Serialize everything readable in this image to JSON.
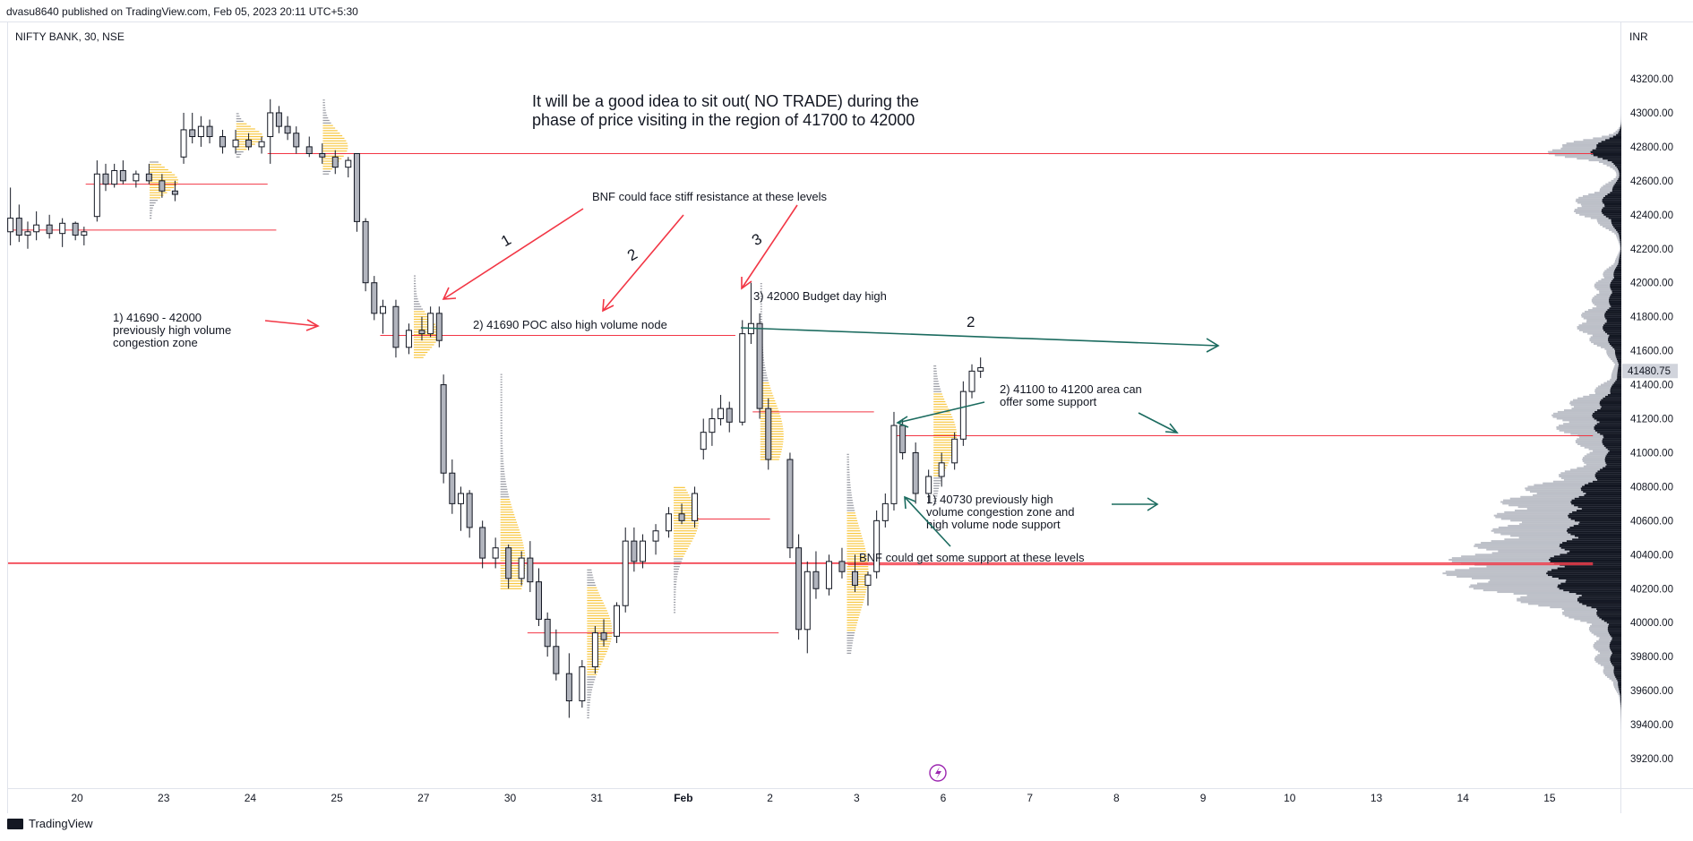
{
  "header": {
    "attribution": "dvasu8640 published on TradingView.com, Feb 05, 2023 20:11 UTC+5:30"
  },
  "symbol": {
    "label": "NIFTY BANK, 30, NSE"
  },
  "currency": "INR",
  "footer": {
    "brand": "TradingView"
  },
  "chart_data": {
    "type": "candlestick",
    "title": "NIFTY BANK, 30, NSE",
    "ylim": [
      39100,
      43400
    ],
    "y_ticks": [
      39200,
      39400,
      39600,
      39800,
      40000,
      40200,
      40400,
      40600,
      40800,
      41000,
      41200,
      41400,
      41600,
      41800,
      42000,
      42200,
      42400,
      42600,
      42800,
      43000,
      43200
    ],
    "x_labels": [
      "20",
      "23",
      "24",
      "25",
      "27",
      "30",
      "31",
      "Feb",
      "2",
      "3",
      "6",
      "7",
      "8",
      "9",
      "10",
      "13",
      "14",
      "15"
    ],
    "last_price": "41480.75",
    "candles": [
      {
        "x": 0.0,
        "o": 42300,
        "h": 42560,
        "l": 42220,
        "c": 42380
      },
      {
        "x": 0.1,
        "o": 42380,
        "h": 42460,
        "l": 42240,
        "c": 42280
      },
      {
        "x": 0.2,
        "o": 42280,
        "h": 42360,
        "l": 42200,
        "c": 42300
      },
      {
        "x": 0.3,
        "o": 42300,
        "h": 42420,
        "l": 42250,
        "c": 42340
      },
      {
        "x": 0.45,
        "o": 42340,
        "h": 42400,
        "l": 42260,
        "c": 42290
      },
      {
        "x": 0.6,
        "o": 42290,
        "h": 42380,
        "l": 42210,
        "c": 42350
      },
      {
        "x": 0.75,
        "o": 42350,
        "h": 42360,
        "l": 42250,
        "c": 42280
      },
      {
        "x": 0.85,
        "o": 42280,
        "h": 42330,
        "l": 42220,
        "c": 42300
      },
      {
        "x": 1.0,
        "o": 42390,
        "h": 42720,
        "l": 42360,
        "c": 42640
      },
      {
        "x": 1.1,
        "o": 42640,
        "h": 42700,
        "l": 42540,
        "c": 42580
      },
      {
        "x": 1.2,
        "o": 42580,
        "h": 42700,
        "l": 42560,
        "c": 42660
      },
      {
        "x": 1.3,
        "o": 42660,
        "h": 42720,
        "l": 42580,
        "c": 42600
      },
      {
        "x": 1.45,
        "o": 42600,
        "h": 42660,
        "l": 42560,
        "c": 42640
      },
      {
        "x": 1.6,
        "o": 42640,
        "h": 42700,
        "l": 42580,
        "c": 42600
      },
      {
        "x": 1.75,
        "o": 42600,
        "h": 42640,
        "l": 42500,
        "c": 42540
      },
      {
        "x": 1.9,
        "o": 42540,
        "h": 42600,
        "l": 42480,
        "c": 42520
      },
      {
        "x": 2.0,
        "o": 42740,
        "h": 43000,
        "l": 42700,
        "c": 42900
      },
      {
        "x": 2.1,
        "o": 42900,
        "h": 43000,
        "l": 42820,
        "c": 42860
      },
      {
        "x": 2.2,
        "o": 42860,
        "h": 42980,
        "l": 42800,
        "c": 42920
      },
      {
        "x": 2.3,
        "o": 42920,
        "h": 42960,
        "l": 42820,
        "c": 42860
      },
      {
        "x": 2.45,
        "o": 42860,
        "h": 42900,
        "l": 42760,
        "c": 42800
      },
      {
        "x": 2.6,
        "o": 42800,
        "h": 42900,
        "l": 42760,
        "c": 42840
      },
      {
        "x": 2.75,
        "o": 42840,
        "h": 42880,
        "l": 42780,
        "c": 42800
      },
      {
        "x": 2.9,
        "o": 42800,
        "h": 42860,
        "l": 42760,
        "c": 42830
      },
      {
        "x": 3.0,
        "o": 42860,
        "h": 43080,
        "l": 42700,
        "c": 43000
      },
      {
        "x": 3.1,
        "o": 43000,
        "h": 43040,
        "l": 42880,
        "c": 42920
      },
      {
        "x": 3.2,
        "o": 42920,
        "h": 42980,
        "l": 42840,
        "c": 42880
      },
      {
        "x": 3.3,
        "o": 42880,
        "h": 42920,
        "l": 42760,
        "c": 42800
      },
      {
        "x": 3.45,
        "o": 42800,
        "h": 42860,
        "l": 42740,
        "c": 42760
      },
      {
        "x": 3.6,
        "o": 42760,
        "h": 42820,
        "l": 42700,
        "c": 42740
      },
      {
        "x": 3.75,
        "o": 42740,
        "h": 42780,
        "l": 42640,
        "c": 42680
      },
      {
        "x": 3.9,
        "o": 42680,
        "h": 42740,
        "l": 42620,
        "c": 42720
      },
      {
        "x": 4.0,
        "o": 42760,
        "h": 42760,
        "l": 42300,
        "c": 42360
      },
      {
        "x": 4.1,
        "o": 42360,
        "h": 42380,
        "l": 41950,
        "c": 42000
      },
      {
        "x": 4.2,
        "o": 42000,
        "h": 42040,
        "l": 41780,
        "c": 41820
      },
      {
        "x": 4.3,
        "o": 41820,
        "h": 41900,
        "l": 41700,
        "c": 41860
      },
      {
        "x": 4.45,
        "o": 41860,
        "h": 41900,
        "l": 41560,
        "c": 41620
      },
      {
        "x": 4.6,
        "o": 41620,
        "h": 41760,
        "l": 41580,
        "c": 41720
      },
      {
        "x": 4.75,
        "o": 41720,
        "h": 41800,
        "l": 41660,
        "c": 41700
      },
      {
        "x": 4.85,
        "o": 41700,
        "h": 41860,
        "l": 41680,
        "c": 41820
      },
      {
        "x": 4.95,
        "o": 41820,
        "h": 41860,
        "l": 41620,
        "c": 41660
      },
      {
        "x": 5.0,
        "o": 41400,
        "h": 41460,
        "l": 40820,
        "c": 40880
      },
      {
        "x": 5.1,
        "o": 40880,
        "h": 40960,
        "l": 40640,
        "c": 40700
      },
      {
        "x": 5.2,
        "o": 40700,
        "h": 40800,
        "l": 40540,
        "c": 40760
      },
      {
        "x": 5.3,
        "o": 40760,
        "h": 40780,
        "l": 40500,
        "c": 40560
      },
      {
        "x": 5.45,
        "o": 40560,
        "h": 40600,
        "l": 40320,
        "c": 40380
      },
      {
        "x": 5.6,
        "o": 40380,
        "h": 40500,
        "l": 40320,
        "c": 40440
      },
      {
        "x": 5.75,
        "o": 40440,
        "h": 40460,
        "l": 40200,
        "c": 40260
      },
      {
        "x": 5.9,
        "o": 40260,
        "h": 40420,
        "l": 40220,
        "c": 40380
      },
      {
        "x": 6.0,
        "o": 40380,
        "h": 40480,
        "l": 40180,
        "c": 40240
      },
      {
        "x": 6.1,
        "o": 40240,
        "h": 40320,
        "l": 39980,
        "c": 40020
      },
      {
        "x": 6.2,
        "o": 40020,
        "h": 40060,
        "l": 39800,
        "c": 39860
      },
      {
        "x": 6.3,
        "o": 39860,
        "h": 39960,
        "l": 39660,
        "c": 39700
      },
      {
        "x": 6.45,
        "o": 39700,
        "h": 39820,
        "l": 39440,
        "c": 39540
      },
      {
        "x": 6.6,
        "o": 39540,
        "h": 39780,
        "l": 39500,
        "c": 39740
      },
      {
        "x": 6.75,
        "o": 39740,
        "h": 39980,
        "l": 39700,
        "c": 39940
      },
      {
        "x": 6.85,
        "o": 39940,
        "h": 40020,
        "l": 39860,
        "c": 39900
      },
      {
        "x": 7.0,
        "o": 39920,
        "h": 40120,
        "l": 39880,
        "c": 40100
      },
      {
        "x": 7.1,
        "o": 40100,
        "h": 40560,
        "l": 40060,
        "c": 40480
      },
      {
        "x": 7.2,
        "o": 40480,
        "h": 40560,
        "l": 40300,
        "c": 40360
      },
      {
        "x": 7.3,
        "o": 40360,
        "h": 40520,
        "l": 40320,
        "c": 40480
      },
      {
        "x": 7.45,
        "o": 40480,
        "h": 40580,
        "l": 40400,
        "c": 40540
      },
      {
        "x": 7.6,
        "o": 40540,
        "h": 40680,
        "l": 40500,
        "c": 40640
      },
      {
        "x": 7.75,
        "o": 40640,
        "h": 40700,
        "l": 40580,
        "c": 40600
      },
      {
        "x": 7.9,
        "o": 40600,
        "h": 40800,
        "l": 40560,
        "c": 40760
      },
      {
        "x": 8.0,
        "o": 41020,
        "h": 41200,
        "l": 40960,
        "c": 41120
      },
      {
        "x": 8.1,
        "o": 41120,
        "h": 41260,
        "l": 41040,
        "c": 41200
      },
      {
        "x": 8.2,
        "o": 41200,
        "h": 41340,
        "l": 41160,
        "c": 41260
      },
      {
        "x": 8.3,
        "o": 41260,
        "h": 41300,
        "l": 41120,
        "c": 41180
      },
      {
        "x": 8.45,
        "o": 41180,
        "h": 41780,
        "l": 41160,
        "c": 41700
      },
      {
        "x": 8.55,
        "o": 41700,
        "h": 42000,
        "l": 41640,
        "c": 41760
      },
      {
        "x": 8.65,
        "o": 41760,
        "h": 41820,
        "l": 41200,
        "c": 41260
      },
      {
        "x": 8.75,
        "o": 41260,
        "h": 41320,
        "l": 40900,
        "c": 40960
      },
      {
        "x": 9.0,
        "o": 40960,
        "h": 41000,
        "l": 40380,
        "c": 40440
      },
      {
        "x": 9.1,
        "o": 40440,
        "h": 40520,
        "l": 39900,
        "c": 39960
      },
      {
        "x": 9.2,
        "o": 39960,
        "h": 40360,
        "l": 39820,
        "c": 40300
      },
      {
        "x": 9.3,
        "o": 40300,
        "h": 40420,
        "l": 40140,
        "c": 40200
      },
      {
        "x": 9.45,
        "o": 40200,
        "h": 40400,
        "l": 40160,
        "c": 40360
      },
      {
        "x": 9.6,
        "o": 40360,
        "h": 40440,
        "l": 40260,
        "c": 40300
      },
      {
        "x": 9.75,
        "o": 40300,
        "h": 40400,
        "l": 40180,
        "c": 40220
      },
      {
        "x": 9.9,
        "o": 40220,
        "h": 40300,
        "l": 40100,
        "c": 40280
      },
      {
        "x": 10.0,
        "o": 40300,
        "h": 40660,
        "l": 40260,
        "c": 40600
      },
      {
        "x": 10.1,
        "o": 40600,
        "h": 40760,
        "l": 40560,
        "c": 40700
      },
      {
        "x": 10.2,
        "o": 40700,
        "h": 41240,
        "l": 40660,
        "c": 41160
      },
      {
        "x": 10.3,
        "o": 41160,
        "h": 41200,
        "l": 40960,
        "c": 41000
      },
      {
        "x": 10.45,
        "o": 41000,
        "h": 41060,
        "l": 40700,
        "c": 40760
      },
      {
        "x": 10.6,
        "o": 40760,
        "h": 40900,
        "l": 40700,
        "c": 40860
      },
      {
        "x": 10.75,
        "o": 40860,
        "h": 41000,
        "l": 40800,
        "c": 40940
      },
      {
        "x": 10.9,
        "o": 40940,
        "h": 41120,
        "l": 40900,
        "c": 41080
      },
      {
        "x": 11.0,
        "o": 41080,
        "h": 41420,
        "l": 41040,
        "c": 41360
      },
      {
        "x": 11.1,
        "o": 41360,
        "h": 41520,
        "l": 41320,
        "c": 41480
      },
      {
        "x": 11.2,
        "o": 41480,
        "h": 41560,
        "l": 41440,
        "c": 41500
      }
    ],
    "horizontal_levels": [
      {
        "y": 42760,
        "x_from": 3.0,
        "x_to": 18.3
      },
      {
        "y": 42580,
        "x_from": 0.9,
        "x_to": 3.0
      },
      {
        "y": 42310,
        "x_from": 0.0,
        "x_to": 3.1
      },
      {
        "y": 41690,
        "x_from": 4.3,
        "x_to": 8.4
      },
      {
        "y": 41240,
        "x_from": 8.6,
        "x_to": 10.0
      },
      {
        "y": 41100,
        "x_from": 10.2,
        "x_to": 18.3
      },
      {
        "y": 40610,
        "x_from": 7.9,
        "x_to": 8.8
      },
      {
        "y": 40350,
        "x_from": 0.0,
        "x_to": 18.3
      },
      {
        "y": 40340,
        "x_from": 9.7,
        "x_to": 18.3
      },
      {
        "y": 39940,
        "x_from": 6.0,
        "x_to": 8.9
      }
    ],
    "annotations": [
      "It will be a good idea to sit out( NO TRADE) during the",
      "phase of price visiting in the region of 41700 to 42000",
      "BNF could face stiff resistance at these levels",
      "1) 41690 - 42000",
      "previously high volume",
      "congestion zone",
      "2) 41690 POC also high volume node",
      "3) 42000 Budget day high",
      "2",
      "2) 41100 to 41200 area can",
      "offer some support",
      "1) 40730 previously high",
      "volume congestion zone and",
      "high volume node support",
      "BNF could  get some support at these levels",
      "1",
      "2",
      "3"
    ]
  }
}
